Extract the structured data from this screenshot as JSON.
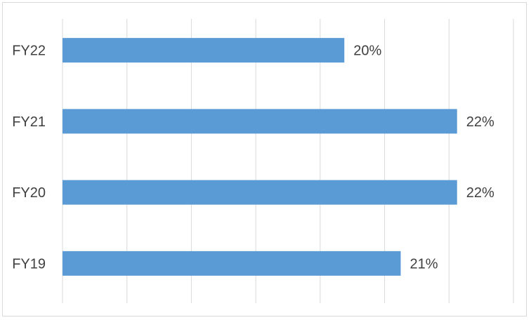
{
  "chart_data": {
    "type": "bar",
    "orientation": "horizontal",
    "categories": [
      "FY22",
      "FY21",
      "FY20",
      "FY19"
    ],
    "values": [
      20,
      22,
      22,
      21
    ],
    "value_labels": [
      "20%",
      "22%",
      "22%",
      "21%"
    ],
    "unit": "%",
    "xlim": [
      15,
      23
    ],
    "gridlines": true,
    "legend": "none",
    "bar_color": "#5b9bd5",
    "title": "",
    "xlabel": "",
    "ylabel": ""
  }
}
